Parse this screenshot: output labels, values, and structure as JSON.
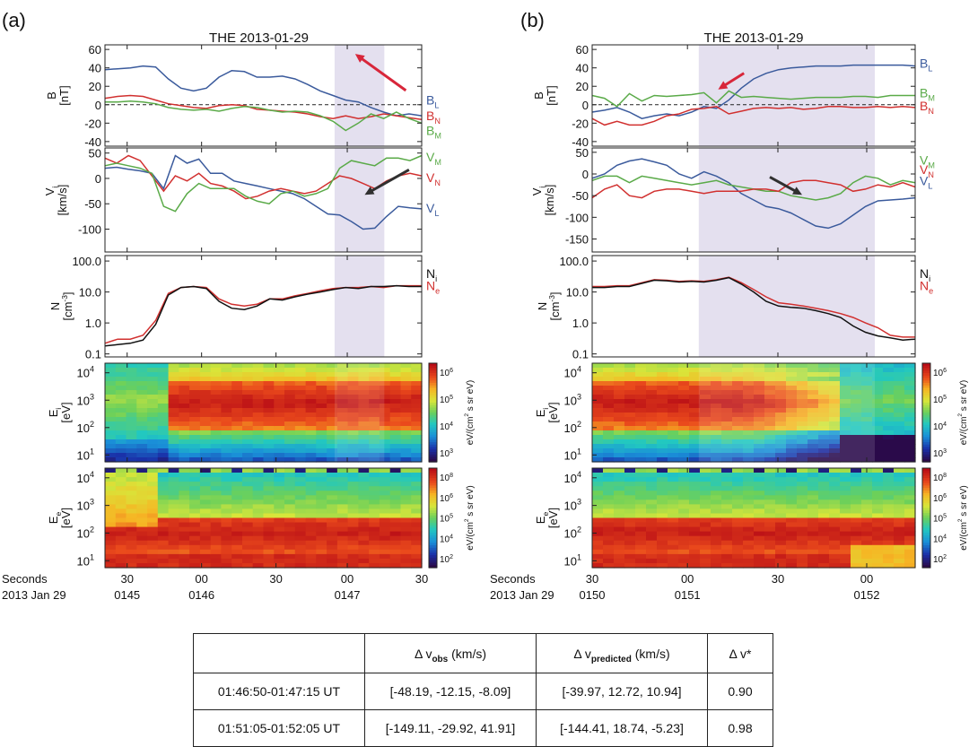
{
  "panels": [
    {
      "label": "(a)",
      "title": "THE 2013-01-29",
      "shade": [
        0.725,
        0.882
      ],
      "arrows": [
        {
          "color": "#d8263a",
          "from": [
            0.95,
            0.55
          ],
          "to": [
            0.79,
            0.91
          ]
        },
        {
          "color": "#303030",
          "from": [
            0.96,
            0.79
          ],
          "to": [
            0.82,
            0.55
          ]
        }
      ],
      "x_ticks": [
        {
          "frac": 0.07,
          "sec": "30",
          "hhmm": "0145"
        },
        {
          "frac": 0.305,
          "sec": "00",
          "hhmm": "0146"
        },
        {
          "frac": 0.54,
          "sec": "30",
          "hhmm": ""
        },
        {
          "frac": 0.765,
          "sec": "00",
          "hhmm": "0147"
        },
        {
          "frac": 1.0,
          "sec": "30",
          "hhmm": ""
        }
      ],
      "B_series": [
        {
          "name": "B_L",
          "color": "#3a5a9c",
          "values": [
            38,
            39,
            40,
            42,
            41,
            28,
            18,
            15,
            18,
            30,
            37,
            36,
            30,
            30,
            31,
            28,
            22,
            15,
            10,
            5,
            3,
            -3,
            -8,
            -12,
            -10,
            -12
          ]
        },
        {
          "name": "B_N",
          "color": "#d1302f",
          "values": [
            7,
            9,
            10,
            9,
            5,
            1,
            -1,
            -3,
            -4,
            -1,
            0,
            -1,
            -5,
            -6,
            -7,
            -8,
            -10,
            -13,
            -15,
            -12,
            -15,
            -13,
            -10,
            -12,
            -14,
            -16
          ]
        },
        {
          "name": "B_M",
          "color": "#5aaa48",
          "values": [
            3,
            3,
            4,
            3,
            1,
            -3,
            -5,
            -6,
            -5,
            -7,
            -4,
            -2,
            -3,
            -6,
            -8,
            -7,
            -8,
            -12,
            -18,
            -28,
            -20,
            -10,
            -15,
            -8,
            -15,
            -20
          ]
        }
      ],
      "B_labels": [
        {
          "main": "B",
          "sub": "L",
          "color": "#3a5a9c",
          "y": 5
        },
        {
          "main": "B",
          "sub": "N",
          "color": "#d1302f",
          "y": -12
        },
        {
          "main": "B",
          "sub": "M",
          "color": "#5aaa48",
          "y": -28
        }
      ],
      "V_series": [
        {
          "name": "V_L",
          "color": "#3a5a9c",
          "values": [
            20,
            22,
            18,
            15,
            10,
            -20,
            45,
            30,
            38,
            10,
            10,
            -5,
            -10,
            -15,
            -20,
            -25,
            -30,
            -40,
            -55,
            -70,
            -72,
            -85,
            -100,
            -98,
            -75,
            -55,
            -58,
            -60
          ]
        },
        {
          "name": "V_N",
          "color": "#d1302f",
          "values": [
            40,
            30,
            45,
            35,
            5,
            -25,
            5,
            -5,
            10,
            -10,
            -15,
            -25,
            -40,
            -35,
            -25,
            -20,
            -25,
            -30,
            -25,
            -10,
            5,
            0,
            -10,
            -20,
            -5,
            5,
            10,
            5
          ]
        },
        {
          "name": "V_M",
          "color": "#5aaa48",
          "values": [
            25,
            30,
            25,
            20,
            10,
            -55,
            -65,
            -30,
            -10,
            -20,
            -20,
            -20,
            -35,
            -45,
            -50,
            -30,
            -25,
            -35,
            -30,
            -20,
            20,
            35,
            30,
            25,
            40,
            40,
            35,
            45
          ]
        }
      ],
      "V_labels": [
        {
          "main": "V",
          "sub": "M",
          "color": "#5aaa48",
          "y": 42
        },
        {
          "main": "V",
          "sub": "N",
          "color": "#d1302f",
          "y": 2
        },
        {
          "main": "V",
          "sub": "L",
          "color": "#3a5a9c",
          "y": -58
        }
      ],
      "N_series": [
        {
          "name": "N_e",
          "color": "#d1302f",
          "values": [
            0.22,
            0.3,
            0.3,
            0.4,
            1.2,
            9,
            14,
            15,
            14,
            6,
            4,
            3.5,
            4,
            6,
            6,
            7.5,
            9,
            11,
            13,
            14,
            14,
            15,
            14,
            16,
            16,
            16
          ]
        },
        {
          "name": "N_i",
          "color": "#111111",
          "values": [
            0.18,
            0.2,
            0.22,
            0.28,
            0.9,
            8,
            14,
            15,
            13,
            5,
            3,
            2.7,
            3.5,
            6,
            5.5,
            7,
            8.5,
            10,
            12,
            14,
            13,
            15,
            15,
            16,
            15,
            15
          ]
        }
      ],
      "N_labels": [
        {
          "main": "N",
          "sub": "i",
          "color": "#111111",
          "y": 40
        },
        {
          "main": "N",
          "sub": "e",
          "color": "#d1302f",
          "y": 16
        }
      ],
      "Ei_spec": {
        "type": "ion",
        "bright": [
          0.2,
          1.0
        ],
        "peak": [
          2.6,
          3.2
        ]
      },
      "Ee_spec": {
        "type": "electron",
        "bright": [
          0.2,
          1.0
        ],
        "peak": [
          1.7,
          2.4
        ]
      }
    },
    {
      "label": "(b)",
      "title": "THE 2013-01-29",
      "shade": [
        0.33,
        0.875
      ],
      "arrows": [
        {
          "color": "#d8263a",
          "from": [
            0.47,
            0.72
          ],
          "to": [
            0.39,
            0.56
          ]
        },
        {
          "color": "#303030",
          "from": [
            0.55,
            0.72
          ],
          "to": [
            0.65,
            0.55
          ]
        }
      ],
      "x_ticks": [
        {
          "frac": 0.0,
          "sec": "30",
          "hhmm": ""
        },
        {
          "frac": 0.295,
          "sec": "00",
          "hhmm": "0151"
        },
        {
          "frac": 0.575,
          "sec": "30",
          "hhmm": ""
        },
        {
          "frac": 0.85,
          "sec": "00",
          "hhmm": "0152"
        }
      ],
      "x_left_hhmm": "0150",
      "B_series": [
        {
          "name": "B_L",
          "color": "#3a5a9c",
          "values": [
            -8,
            -6,
            -3,
            -8,
            -15,
            -12,
            -10,
            -12,
            -8,
            -2,
            -4,
            5,
            18,
            28,
            34,
            38,
            40,
            41,
            42,
            42,
            42,
            43,
            43,
            43,
            43,
            43,
            42
          ]
        },
        {
          "name": "B_M",
          "color": "#5aaa48",
          "values": [
            10,
            7,
            -2,
            12,
            4,
            10,
            9,
            10,
            11,
            13,
            2,
            15,
            8,
            9,
            8,
            7,
            6,
            7,
            8,
            8,
            8,
            9,
            9,
            8,
            10,
            10,
            10
          ]
        },
        {
          "name": "B_N",
          "color": "#d1302f",
          "values": [
            -15,
            -22,
            -18,
            -22,
            -22,
            -18,
            -12,
            -10,
            -5,
            -4,
            -2,
            -10,
            -7,
            -4,
            -3,
            -4,
            -3,
            -5,
            -4,
            -2,
            -2,
            -3,
            -3,
            -2,
            -3,
            -2,
            -3
          ]
        }
      ],
      "B_labels": [
        {
          "main": "B",
          "sub": "L",
          "color": "#3a5a9c",
          "y": 45
        },
        {
          "main": "B",
          "sub": "M",
          "color": "#5aaa48",
          "y": 13
        },
        {
          "main": "B",
          "sub": "N",
          "color": "#d1302f",
          "y": -1
        }
      ],
      "V_series": [
        {
          "name": "V_L",
          "color": "#3a5a9c",
          "values": [
            -10,
            0,
            20,
            30,
            35,
            28,
            20,
            0,
            -10,
            5,
            -5,
            -20,
            -45,
            -60,
            -75,
            -80,
            -90,
            -105,
            -120,
            -125,
            -115,
            -95,
            -75,
            -62,
            -60,
            -58,
            -55
          ]
        },
        {
          "name": "V_M",
          "color": "#5aaa48",
          "values": [
            -15,
            -5,
            -5,
            -20,
            -5,
            -10,
            -15,
            -20,
            -25,
            -20,
            -15,
            -25,
            -30,
            -35,
            -40,
            -40,
            -50,
            -55,
            -60,
            -55,
            -45,
            -20,
            -5,
            -10,
            -25,
            -15,
            -20
          ]
        },
        {
          "name": "V_N",
          "color": "#d1302f",
          "values": [
            -55,
            -35,
            -25,
            -50,
            -55,
            -40,
            -35,
            -35,
            -40,
            -45,
            -40,
            -40,
            -40,
            -35,
            -35,
            -40,
            -20,
            -15,
            -15,
            -20,
            -25,
            -40,
            -35,
            -25,
            -30,
            -20,
            -30
          ]
        }
      ],
      "V_labels": [
        {
          "main": "V",
          "sub": "M",
          "color": "#5aaa48",
          "y": 32
        },
        {
          "main": "V",
          "sub": "N",
          "color": "#d1302f",
          "y": 10
        },
        {
          "main": "V",
          "sub": "L",
          "color": "#3a5a9c",
          "y": -15
        }
      ],
      "N_series": [
        {
          "name": "N_e",
          "color": "#d1302f",
          "values": [
            15,
            15,
            16,
            16,
            20,
            25,
            24,
            22,
            23,
            22,
            25,
            30,
            20,
            12,
            7,
            4.5,
            4,
            3.5,
            3,
            2.5,
            2,
            1.5,
            1,
            0.7,
            0.4,
            0.35,
            0.35
          ]
        },
        {
          "name": "N_i",
          "color": "#111111",
          "values": [
            14,
            14,
            15,
            15,
            19,
            24,
            23,
            21,
            22,
            21,
            24,
            29,
            18,
            10,
            5,
            3.5,
            3.2,
            3,
            2.5,
            2,
            1.5,
            0.8,
            0.5,
            0.38,
            0.33,
            0.28,
            0.3
          ]
        }
      ],
      "N_labels": [
        {
          "main": "N",
          "sub": "i",
          "color": "#111111",
          "y": 40
        },
        {
          "main": "N",
          "sub": "e",
          "color": "#d1302f",
          "y": 16
        }
      ],
      "Ei_spec": {
        "type": "ion",
        "bright": [
          0.0,
          0.75
        ],
        "peak": [
          2.5,
          3.3
        ]
      },
      "Ee_spec": {
        "type": "electron",
        "bright": [
          0.0,
          1.0
        ],
        "peak": [
          1.6,
          2.4
        ]
      }
    }
  ],
  "axes": {
    "B": {
      "label": "B",
      "unit": "[nT]",
      "ylim": [
        -45,
        65
      ],
      "ticks": [
        "60",
        "40",
        "20",
        "0",
        "-20",
        "-40"
      ],
      "tick_vals": [
        60,
        40,
        20,
        0,
        -20,
        -40
      ]
    },
    "V": {
      "label": "V",
      "label_sub": "i",
      "unit": "[km/s]",
      "ylim": [
        -145,
        60
      ],
      "ticks_a": [
        "50",
        "0",
        "-50",
        "-100"
      ],
      "tick_vals_a": [
        50,
        0,
        -50,
        -100
      ],
      "ylim_b": [
        -180,
        60
      ],
      "ticks_b": [
        "50",
        "0",
        "-50",
        "-100",
        "-150"
      ],
      "tick_vals_b": [
        50,
        0,
        -50,
        -100,
        -150
      ]
    },
    "N": {
      "label": "N",
      "unit": "[cm",
      "unit_sup": "-3",
      "unit_end": "]",
      "ylim": [
        0.08,
        150
      ],
      "ticks": [
        "100.0",
        "10.0",
        "1.0",
        "0.1"
      ],
      "tick_vals": [
        100,
        10,
        1,
        0.1
      ]
    },
    "Ei": {
      "label": "E",
      "label_sub": "i",
      "unit": "[eV]",
      "ticks": [
        "10",
        "10",
        "10",
        "10"
      ],
      "tick_exps": [
        "4",
        "3",
        "2",
        "1"
      ],
      "tick_vals": [
        4,
        3,
        2,
        1
      ],
      "ylim": [
        0.75,
        4.35
      ]
    },
    "Ee": {
      "label": "E",
      "label_sub": "e",
      "unit": "[eV]",
      "ticks": [
        "10",
        "10",
        "10",
        "10"
      ],
      "tick_exps": [
        "4",
        "3",
        "2",
        "1"
      ],
      "tick_vals": [
        4,
        3,
        2,
        1
      ],
      "ylim": [
        0.75,
        4.35
      ]
    }
  },
  "colorbars": {
    "Ei": {
      "unit": "eV/(cm",
      "unit_sup": "2",
      "unit_end": " s sr eV)",
      "ticks": [
        "10",
        "10",
        "10",
        "10"
      ],
      "tick_exps": [
        "6",
        "5",
        "4",
        "3"
      ]
    },
    "Ee": {
      "unit": "eV/(cm",
      "unit_sup": "2",
      "unit_end": " s sr eV)",
      "ticks": [
        "10",
        "10",
        "10",
        "10",
        "10"
      ],
      "tick_exps": [
        "8",
        "6",
        "5",
        "4",
        "2"
      ]
    }
  },
  "x_axis_labels": {
    "seconds": "Seconds",
    "date": "2013 Jan 29"
  },
  "table": {
    "headers": [
      {
        "text": "",
        "sub": "",
        "suffix": ""
      },
      {
        "text": "Δ v",
        "sub": "obs",
        "suffix": " (km/s)"
      },
      {
        "text": "Δ v",
        "sub": "predicted",
        "suffix": " (km/s)"
      },
      {
        "text": "Δ v*",
        "sub": "",
        "suffix": ""
      }
    ],
    "rows": [
      [
        "01:46:50-01:47:15 UT",
        "[-48.19, -12.15, -8.09]",
        "[-39.97, 12.72, 10.94]",
        "0.90"
      ],
      [
        "01:51:05-01:52:05 UT",
        "[-149.11, -29.92, 41.91]",
        "[-144.41, 18.74, -5.23]",
        "0.98"
      ]
    ]
  }
}
